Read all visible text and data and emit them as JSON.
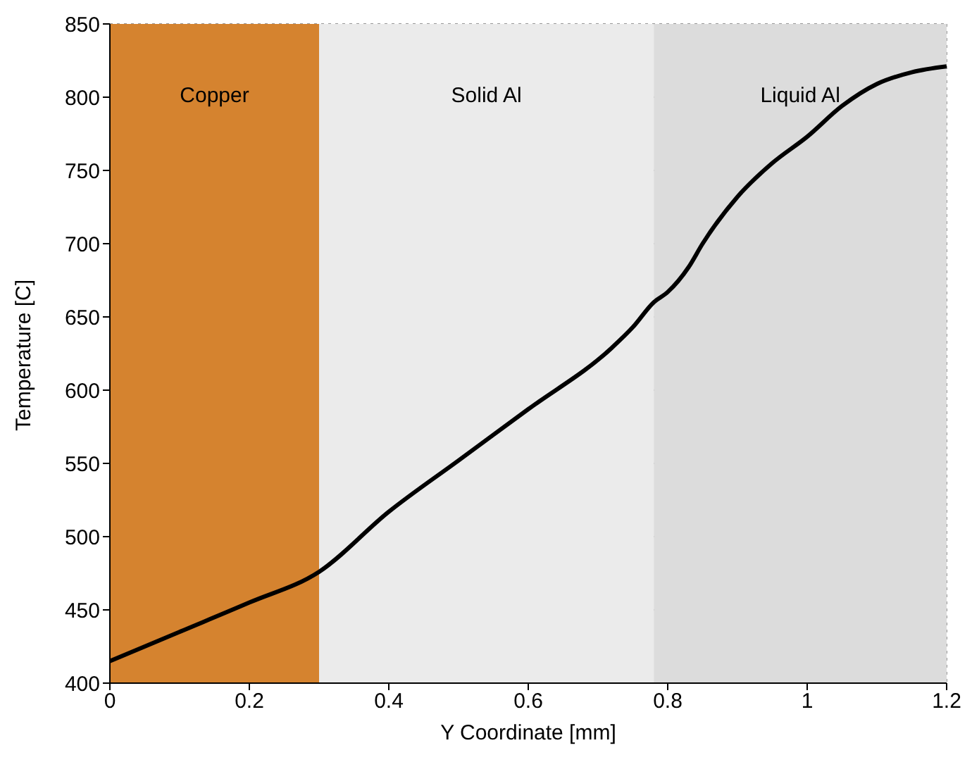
{
  "chart_data": {
    "type": "line",
    "xlabel": "Y Coordinate [mm]",
    "ylabel": "Temperature [C]",
    "x": [
      0,
      0.1,
      0.2,
      0.3,
      0.4,
      0.5,
      0.6,
      0.72,
      0.75,
      0.78,
      0.8,
      0.83,
      0.85,
      0.9,
      0.95,
      1.0,
      1.05,
      1.1,
      1.15,
      1.2
    ],
    "series": [
      {
        "color": "#000000",
        "values": [
          415,
          435,
          455,
          476,
          517,
          552,
          587,
          629,
          643,
          660,
          667,
          684,
          700,
          732,
          755,
          773,
          794,
          809,
          817,
          821
        ]
      }
    ],
    "xlim": [
      0,
      1.2
    ],
    "xticks": [
      0,
      0.2,
      0.4,
      0.6,
      0.8,
      1,
      1.2
    ],
    "ylim": [
      400,
      850
    ],
    "yticks": [
      400,
      450,
      500,
      550,
      600,
      650,
      700,
      750,
      800,
      850
    ],
    "grid": true,
    "marker": "none",
    "line_style": "solid",
    "bands": [
      {
        "axis": "x",
        "from": 0,
        "to": 0.3,
        "label": "Copper",
        "color": "#d5832f"
      },
      {
        "axis": "x",
        "from": 0.3,
        "to": 0.78,
        "label": "Solid Al",
        "color": "#ebebeb"
      },
      {
        "axis": "x",
        "from": 0.78,
        "to": 1.2,
        "label": "Liquid Al",
        "color": "#dcdcdc"
      }
    ]
  }
}
